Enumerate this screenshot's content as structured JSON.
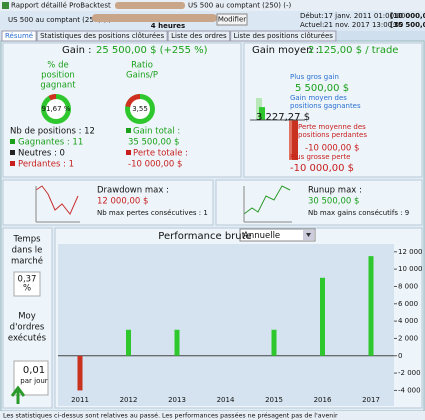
{
  "window": {
    "title": "Rapport détaillé ProBacktest",
    "title_right": "US 500 au comptant (250) (-)"
  },
  "toolbar": {
    "instrument": "US 500 au comptant (250) (-)",
    "timeframe": "4 heures",
    "button": "Modifier",
    "start_label": "Début:",
    "start": "17 janv. 2011 01:00:00",
    "start_capital": "[10 000,00 $]",
    "current_label": "Actuel:",
    "current": "21 nov. 2017 13:00:00",
    "current_capital": "[35 500,00 $]"
  },
  "tabs": [
    "Résumé",
    "Statistiques des positions clôturées",
    "Liste des ordres",
    "Liste des positions clôturées"
  ],
  "summary": {
    "gain_label": "Gain :",
    "gain": "25 500,00 $ (+255 %)",
    "win_pct_lines": [
      "% de",
      "position",
      "gagnant"
    ],
    "win_pct": 91.67,
    "win_pct_label": "91,67 %",
    "ratio_lines": [
      "Ratio",
      "Gains/P"
    ],
    "ratio": 3.55,
    "ratio_label": "3,55",
    "positions": "Nb de positions : 12",
    "winners": "Gagnantes : 11",
    "neutral": "Neutres : 0",
    "losers": "Perdantes : 1",
    "total_gain_label": "Gain total :",
    "total_gain": "35 500,00 $",
    "total_loss_label": "Perte totale :",
    "total_loss": "-10 000,00 $"
  },
  "average": {
    "title_label": "Gain moyen :",
    "title": "2 125,00 $ / trade",
    "bars": [
      {
        "label_lines": [
          "Plus gros gain"
        ],
        "value": 5500,
        "value_label": "5 500,00 $"
      },
      {
        "label_lines": [
          "Gain moyen des",
          "positions gagnantes"
        ],
        "value": 3227.27,
        "value_label": "3 227,27 $"
      },
      {
        "label_lines": [
          "Perte moyenne des",
          "positions perdantes"
        ],
        "value": -10000,
        "value_label": "-10 000,00 $"
      },
      {
        "label_lines": [
          "Plus grosse perte"
        ],
        "value": -10000,
        "value_label": "-10 000,00 $"
      }
    ]
  },
  "drawdown": {
    "label": "Drawdown max :",
    "value": "12 000,00 $",
    "note": "Nb max pertes consécutives : 1"
  },
  "runup": {
    "label": "Runup max :",
    "value": "30 500,00 $",
    "note": "Nb max gains consécutifs : 9"
  },
  "market_time": {
    "lines": [
      "Temps",
      "dans le",
      "marché"
    ],
    "value_lines": [
      "0,37",
      "%"
    ]
  },
  "orders": {
    "lines": [
      "Moy",
      "d'ordres",
      "exécutés"
    ],
    "value": "0,01",
    "unit": "par jour"
  },
  "chart_data": {
    "type": "bar",
    "title": "Performance brute",
    "period": "Annuelle",
    "categories": [
      "2011",
      "2012",
      "2013",
      "2014",
      "2015",
      "2016",
      "2017"
    ],
    "values": [
      -4000,
      3000,
      3000,
      0,
      3000,
      9000,
      11500
    ],
    "pos_color": "#2ec82e",
    "neg_color": "#c8321e",
    "ylim": [
      -5800,
      12900
    ],
    "yticks": [
      {
        "value": 12000,
        "label": "12 000"
      },
      {
        "value": 10000,
        "label": "10 000"
      },
      {
        "value": 8000,
        "label": "8 000"
      },
      {
        "value": 6000,
        "label": "6 000"
      },
      {
        "value": 4000,
        "label": "4 000"
      },
      {
        "value": 2000,
        "label": "2 000"
      },
      0,
      {
        "value": -2000,
        "label": "-2 000"
      },
      {
        "value": -4000,
        "label": "-4 000"
      }
    ]
  },
  "footer": "Les statistiques ci-dessus sont relatives au passé. Les performances passées ne présagent pas de l'avenir"
}
